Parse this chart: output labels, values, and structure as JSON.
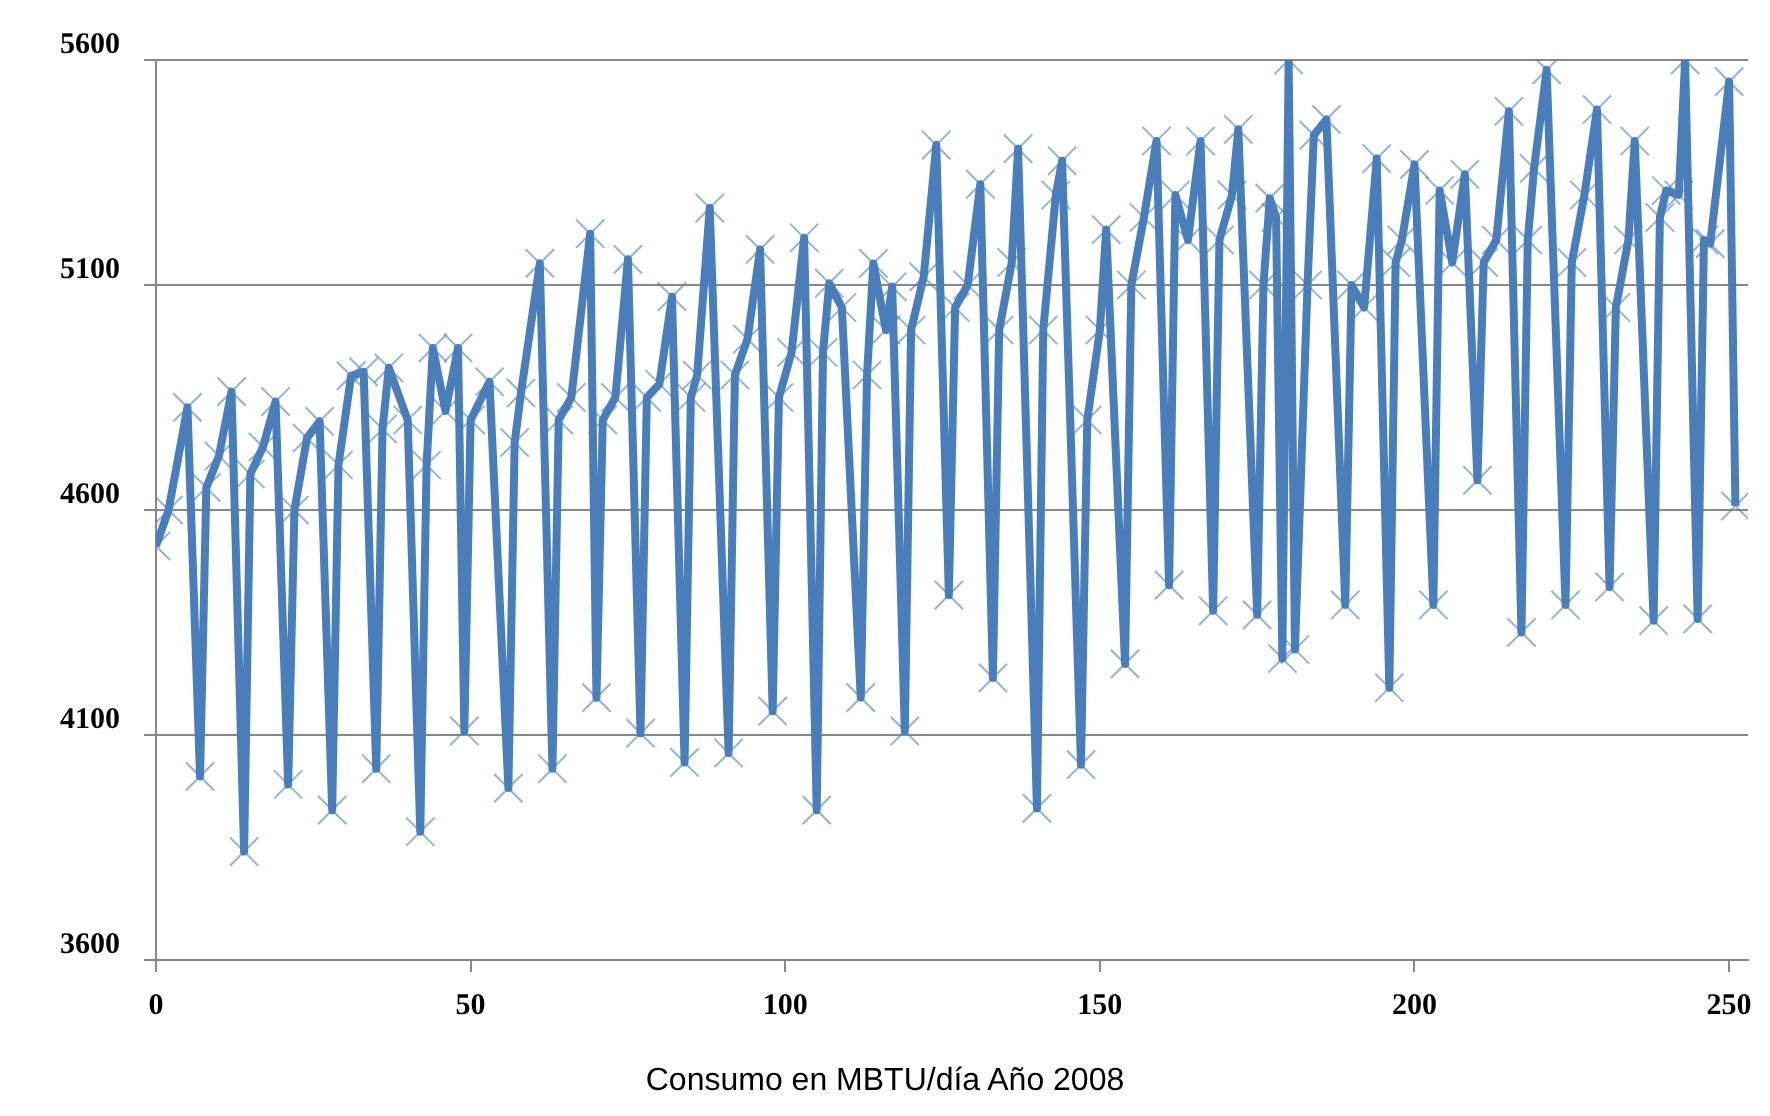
{
  "chart_data": {
    "type": "line",
    "xlabel": "Consumo en MBTU/día Año 2008",
    "xlim": [
      0,
      253
    ],
    "xticks": [
      0,
      50,
      100,
      150,
      200,
      250
    ],
    "ylim": [
      3600,
      5600
    ],
    "yticks": [
      3600,
      4100,
      4600,
      5100,
      5600
    ],
    "grid": "y",
    "legend": false,
    "marker": "cross",
    "line_style": "solid",
    "series": [
      {
        "color": "#4a7ebb",
        "x": [
          0,
          2,
          5,
          7,
          8,
          10,
          12,
          14,
          15,
          17,
          19,
          21,
          22,
          24,
          26,
          28,
          29,
          31,
          33,
          35,
          36,
          37,
          40,
          42,
          43,
          44,
          46,
          48,
          49,
          50,
          53,
          56,
          57,
          58,
          61,
          63,
          64,
          66,
          69,
          70,
          71,
          73,
          75,
          77,
          78,
          80,
          82,
          84,
          85,
          86,
          88,
          91,
          92,
          94,
          96,
          98,
          99,
          101,
          103,
          105,
          106,
          107,
          109,
          112,
          113,
          114,
          116,
          117,
          119,
          120,
          122,
          124,
          126,
          127,
          129,
          131,
          133,
          134,
          136,
          137,
          140,
          141,
          143,
          144,
          147,
          148,
          150,
          151,
          154,
          155,
          157,
          159,
          161,
          162,
          164,
          166,
          168,
          169,
          171,
          172,
          175,
          176,
          177,
          178,
          179,
          180,
          181,
          183,
          184,
          186,
          189,
          190,
          192,
          194,
          196,
          197,
          198,
          200,
          203,
          204,
          206,
          208,
          210,
          211,
          213,
          215,
          217,
          218,
          219,
          221,
          224,
          225,
          227,
          229,
          231,
          232,
          234,
          235,
          238,
          239,
          240,
          242,
          243,
          245,
          246,
          247,
          250,
          251
        ],
        "values": [
          4520,
          4600,
          4828,
          4008,
          4650,
          4720,
          4863,
          3841,
          4680,
          4740,
          4841,
          3990,
          4600,
          4760,
          4797,
          3933,
          4700,
          4898,
          4907,
          4025,
          4780,
          4916,
          4800,
          3885,
          4700,
          4960,
          4820,
          4960,
          4109,
          4800,
          4885,
          3982,
          4750,
          4860,
          5148,
          4025,
          4800,
          4850,
          5214,
          4183,
          4800,
          4850,
          5157,
          4104,
          4850,
          4880,
          5074,
          4039,
          4850,
          4900,
          5271,
          4060,
          4900,
          4980,
          5179,
          4153,
          4850,
          4950,
          5205,
          3933,
          4950,
          5104,
          5050,
          4183,
          4900,
          5148,
          5000,
          5096,
          4109,
          5000,
          5118,
          5411,
          4411,
          5050,
          5100,
          5324,
          4227,
          5000,
          5150,
          5403,
          3937,
          5000,
          5300,
          5376,
          4034,
          4800,
          5000,
          5223,
          4258,
          5100,
          5250,
          5420,
          4433,
          5300,
          5200,
          5420,
          4376,
          5200,
          5300,
          5446,
          4367,
          5100,
          5293,
          5250,
          4270,
          5600,
          4290,
          5100,
          5433,
          5468,
          4389,
          5100,
          5050,
          5381,
          4205,
          5150,
          5200,
          5368,
          4389,
          5310,
          5150,
          5346,
          4666,
          5150,
          5200,
          5486,
          4328,
          5200,
          5359,
          5578,
          4389,
          5150,
          5300,
          5490,
          4429,
          5050,
          5200,
          5420,
          4354,
          5250,
          5310,
          5300,
          5600,
          4358,
          5200,
          5192,
          5552,
          4609
        ]
      }
    ]
  }
}
